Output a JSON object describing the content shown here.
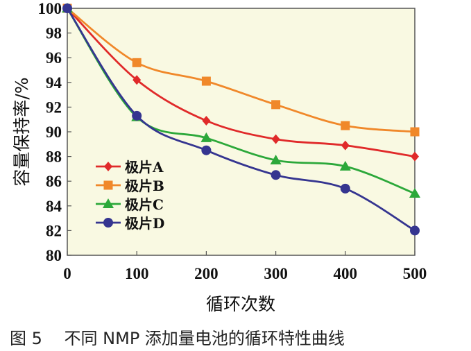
{
  "chart_data": {
    "type": "line",
    "title": "",
    "caption": "图 5　 不同 NMP 添加量电池的循环特性曲线",
    "xlabel": "循环次数",
    "ylabel": "容量保持率/%",
    "x": [
      0,
      100,
      200,
      300,
      400,
      500
    ],
    "xlim": [
      0,
      500
    ],
    "ylim": [
      80,
      100
    ],
    "xticks": [
      "0",
      "100",
      "200",
      "300",
      "400",
      "500"
    ],
    "yticks": [
      "80",
      "82",
      "84",
      "86",
      "88",
      "90",
      "92",
      "94",
      "96",
      "98",
      "100"
    ],
    "grid": false,
    "legend_position": "bottom-left",
    "series": [
      {
        "name": "极片A",
        "color": "#e02a2a",
        "marker": "diamond",
        "values": [
          100,
          94.2,
          90.9,
          89.4,
          88.9,
          88.0
        ]
      },
      {
        "name": "极片B",
        "color": "#f0882a",
        "marker": "square",
        "values": [
          100,
          95.6,
          94.1,
          92.2,
          90.5,
          90.0
        ]
      },
      {
        "name": "极片C",
        "color": "#2ca83a",
        "marker": "triangle",
        "values": [
          100,
          91.2,
          89.5,
          87.7,
          87.2,
          85.0
        ]
      },
      {
        "name": "极片D",
        "color": "#353590",
        "marker": "circle",
        "values": [
          100,
          91.3,
          88.5,
          86.5,
          85.4,
          82.0
        ]
      }
    ]
  }
}
